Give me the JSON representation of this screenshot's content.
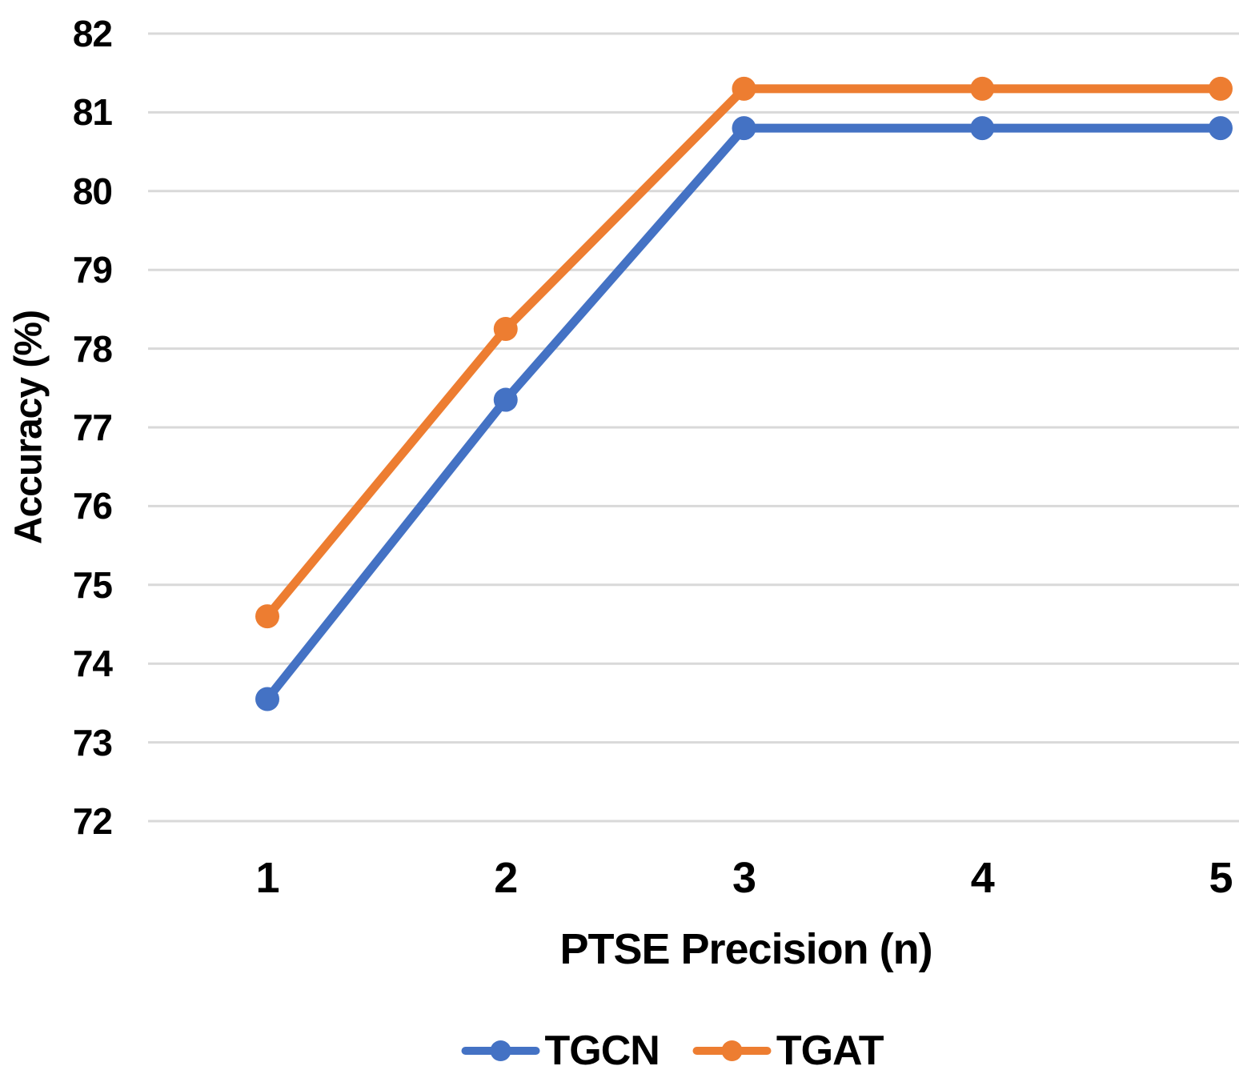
{
  "chart_data": {
    "type": "line",
    "title": "",
    "xlabel": "PTSE Precision (n)",
    "ylabel": "Accuracy (%)",
    "categories": [
      "1",
      "2",
      "3",
      "4",
      "5"
    ],
    "series": [
      {
        "name": "TGCN",
        "color": "#4472C4",
        "values": [
          73.55,
          77.35,
          80.8,
          80.8,
          80.8
        ]
      },
      {
        "name": "TGAT",
        "color": "#ED7D31",
        "values": [
          74.6,
          78.25,
          81.3,
          81.3,
          81.3
        ]
      }
    ],
    "ylim": [
      72,
      82
    ],
    "yticks": [
      72,
      73,
      74,
      75,
      76,
      77,
      78,
      79,
      80,
      81,
      82
    ],
    "ytick_step": 1,
    "grid": "horizontal",
    "gridline_color": "#D9D9D9",
    "text_color": "#000000",
    "background_color": "#FFFFFF",
    "legend_position": "bottom",
    "marker": "circle"
  }
}
